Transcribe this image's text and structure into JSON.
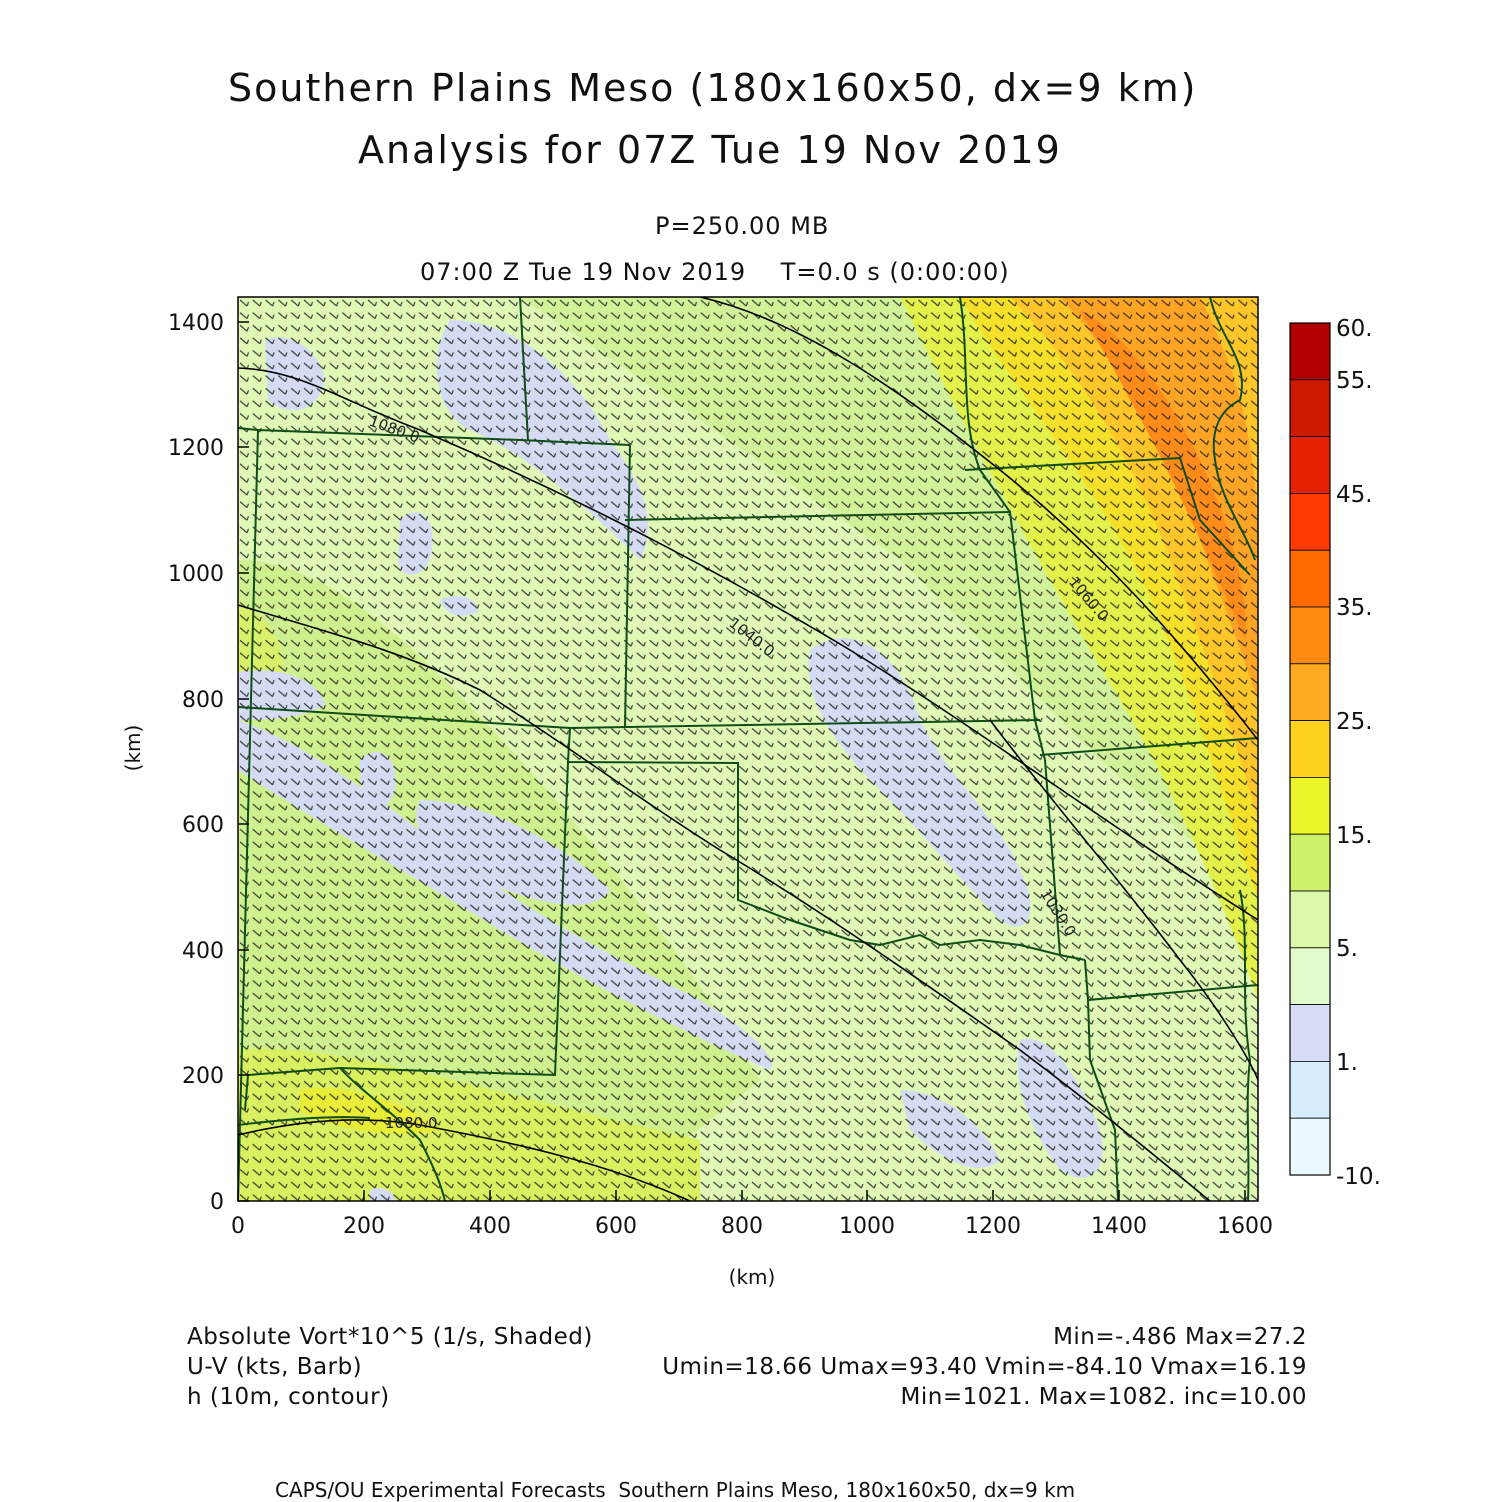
{
  "title": {
    "line1": "Southern Plains Meso (180x160x50, dx=9 km)",
    "line2": "Analysis for 07Z Tue 19 Nov 2019"
  },
  "subtitle": {
    "level": "P=250.00 MB",
    "time": "07:00 Z Tue 19 Nov 2019    T=0.0 s (0:00:00)"
  },
  "axes": {
    "x_label": "(km)",
    "y_label": "(km)",
    "x_ticks": [
      "0",
      "200",
      "400",
      "600",
      "800",
      "1000",
      "1200",
      "1400",
      "1600"
    ],
    "y_ticks": [
      "0",
      "200",
      "400",
      "600",
      "800",
      "1000",
      "1200",
      "1400"
    ]
  },
  "colorbar": {
    "labels": [
      "60.",
      "55.",
      "45.",
      "35.",
      "25.",
      "15.",
      "5.",
      "1.",
      "-10."
    ],
    "colors": [
      "#b00000",
      "#cc1a00",
      "#e52200",
      "#ff3a00",
      "#ff6a00",
      "#ff8c10",
      "#ffaa20",
      "#ffd21e",
      "#ecf529",
      "#cdf26a",
      "#dbf9a8",
      "#e2fbcc",
      "#d6dcf5",
      "#d8edfb",
      "#eaf8ff"
    ]
  },
  "contours": {
    "labels": [
      "1080.0",
      "1060.0",
      "1040.0",
      "1030.0",
      "1080.0"
    ]
  },
  "legend": {
    "row1_left": "Absolute Vort*10^5 (1/s, Shaded)",
    "row1_right": "Min=-.486 Max=27.2",
    "row2_left": "U-V (kts, Barb)",
    "row2_right": "Umin=18.66 Umax=93.40 Vmin=-84.10 Vmax=16.19",
    "row3_left": "h (10m, contour)",
    "row3_right": "Min=1021. Max=1082. inc=10.00"
  },
  "footer": "CAPS/OU Experimental Forecasts  Southern Plains Meso, 180x160x50, dx=9 km"
}
